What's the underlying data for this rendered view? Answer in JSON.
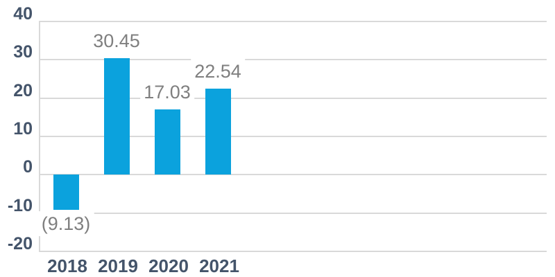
{
  "chart_data": {
    "type": "bar",
    "title": "",
    "categories": [
      "2018",
      "2019",
      "2020",
      "2021"
    ],
    "values": [
      -9.13,
      30.45,
      17.03,
      22.54
    ],
    "value_labels": [
      "(9.13)",
      "30.45",
      "17.03",
      "22.54"
    ],
    "xlabel": "",
    "ylabel": "",
    "ylim": [
      -20,
      40
    ],
    "yticks": [
      40,
      30,
      20,
      10,
      0,
      -10,
      -20
    ],
    "ytick_labels": [
      "40",
      "30",
      "20",
      "10",
      "0",
      "-10",
      "-20"
    ],
    "grid": "horizontal",
    "legend": "none",
    "colors": {
      "bar": "#0ba2dd",
      "axis_label": "#44546a",
      "data_label": "#7f7f7f",
      "gridline": "#d9d9d9",
      "background": "#ffffff"
    }
  }
}
